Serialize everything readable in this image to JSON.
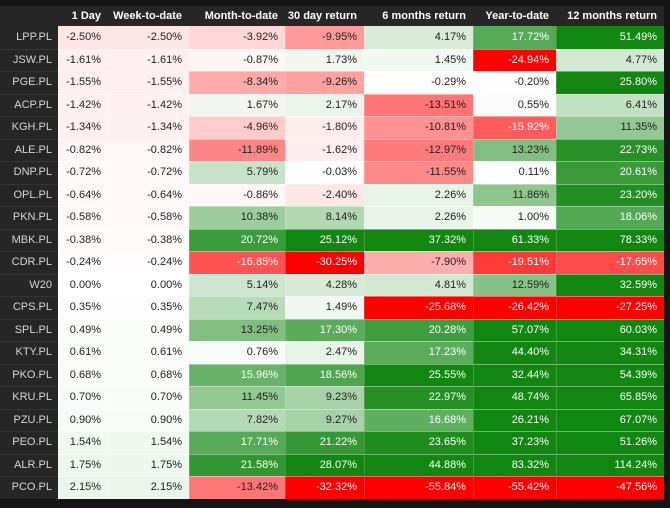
{
  "chart_data": {
    "type": "heatmap",
    "title": "",
    "corner_label": "",
    "columns": [
      "1 Day",
      "Week-to-date",
      "Month-to-date",
      "30 day return",
      "6 months return",
      "Year-to-date",
      "12 months return"
    ],
    "rows": [
      {
        "label": "LPP.PL",
        "values": [
          -2.5,
          -2.5,
          -3.92,
          -9.95,
          4.17,
          17.72,
          51.49
        ]
      },
      {
        "label": "JSW.PL",
        "values": [
          -1.61,
          -1.61,
          -0.87,
          1.73,
          1.45,
          -24.94,
          4.77
        ]
      },
      {
        "label": "PGE.PL",
        "values": [
          -1.55,
          -1.55,
          -8.34,
          -9.26,
          -0.29,
          -0.2,
          25.8
        ]
      },
      {
        "label": "ACP.PL",
        "values": [
          -1.42,
          -1.42,
          1.67,
          2.17,
          -13.51,
          0.55,
          6.41
        ]
      },
      {
        "label": "KGH.PL",
        "values": [
          -1.34,
          -1.34,
          -4.96,
          -1.8,
          -10.81,
          -15.92,
          11.35
        ]
      },
      {
        "label": "ALE.PL",
        "values": [
          -0.82,
          -0.82,
          -11.89,
          -1.62,
          -12.97,
          13.23,
          22.73
        ]
      },
      {
        "label": "DNP.PL",
        "values": [
          -0.72,
          -0.72,
          5.79,
          -0.03,
          -11.55,
          0.11,
          20.61
        ]
      },
      {
        "label": "OPL.PL",
        "values": [
          -0.64,
          -0.64,
          -0.86,
          -2.4,
          2.26,
          11.86,
          23.2
        ]
      },
      {
        "label": "PKN.PL",
        "values": [
          -0.58,
          -0.58,
          10.38,
          8.14,
          2.26,
          1.0,
          18.06
        ]
      },
      {
        "label": "MBK.PL",
        "values": [
          -0.38,
          -0.38,
          20.72,
          25.12,
          37.32,
          61.33,
          78.33
        ]
      },
      {
        "label": "CDR.PL",
        "values": [
          -0.24,
          -0.24,
          -16.85,
          -30.25,
          -7.9,
          -19.51,
          -17.65
        ]
      },
      {
        "label": "W20",
        "values": [
          0.0,
          0.0,
          5.14,
          4.28,
          4.81,
          12.59,
          32.59
        ]
      },
      {
        "label": "CPS.PL",
        "values": [
          0.35,
          0.35,
          7.47,
          1.49,
          -25.68,
          -26.42,
          -27.25
        ]
      },
      {
        "label": "SPL.PL",
        "values": [
          0.49,
          0.49,
          13.25,
          17.3,
          20.28,
          57.07,
          60.03
        ]
      },
      {
        "label": "KTY.PL",
        "values": [
          0.61,
          0.61,
          0.76,
          2.47,
          17.23,
          44.4,
          34.31
        ]
      },
      {
        "label": "PKO.PL",
        "values": [
          0.68,
          0.68,
          15.96,
          18.56,
          25.55,
          32.44,
          54.39
        ]
      },
      {
        "label": "KRU.PL",
        "values": [
          0.7,
          0.7,
          11.45,
          9.23,
          22.97,
          48.74,
          65.85
        ]
      },
      {
        "label": "PZU.PL",
        "values": [
          0.9,
          0.9,
          7.82,
          9.27,
          16.68,
          26.21,
          67.07
        ]
      },
      {
        "label": "PEO.PL",
        "values": [
          1.54,
          1.54,
          17.71,
          21.22,
          23.65,
          37.23,
          51.26
        ]
      },
      {
        "label": "ALR.PL",
        "values": [
          1.75,
          1.75,
          21.58,
          28.07,
          44.88,
          83.32,
          114.24
        ]
      },
      {
        "label": "PCO.PL",
        "values": [
          2.15,
          2.15,
          -13.42,
          -32.32,
          -55.84,
          -55.42,
          -47.56
        ]
      }
    ],
    "value_suffix": "%",
    "value_decimals": 2,
    "color_scale": {
      "negative_max": "#ff0000",
      "neutral": "#ffffff",
      "positive_max": "#118611",
      "saturation_abs_pct": 25,
      "white_text_positive_from": 14,
      "white_text_negative_from": -14.5
    },
    "text_colors": {
      "light": "#ffffff",
      "dark": "#212121"
    },
    "layout_hints": {
      "legend": "none",
      "grid": "subtle-white",
      "value_align": "right"
    }
  },
  "theme": {
    "page_bg": "#151515",
    "header_bg": "#262627",
    "header_text": "#ffffff",
    "row_label_text": "#d6d6d6"
  }
}
